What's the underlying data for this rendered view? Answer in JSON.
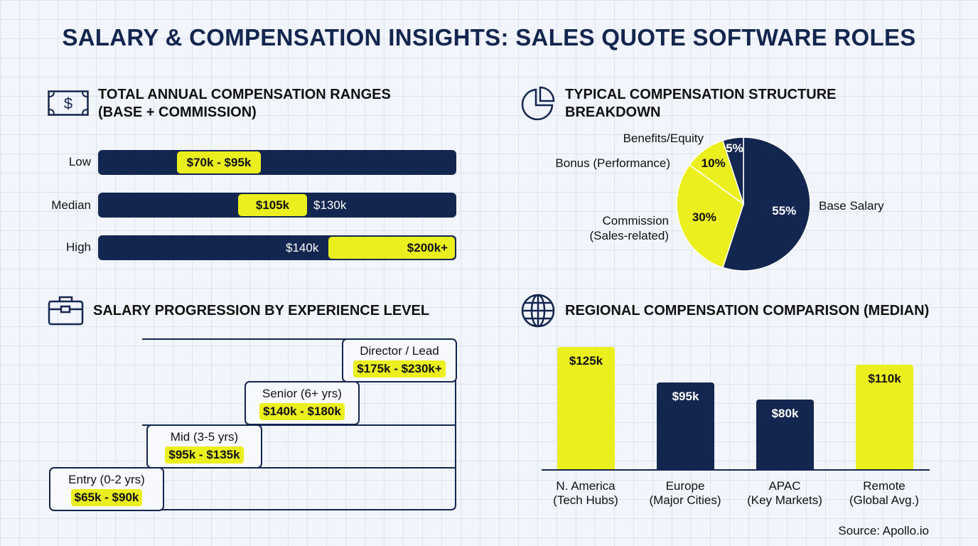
{
  "title": "SALARY & COMPENSATION INSIGHTS: SALES QUOTE SOFTWARE ROLES",
  "colors": {
    "navy": "#13264f",
    "yellow": "#ecef1e"
  },
  "sections": {
    "ranges": {
      "title_line1": "TOTAL ANNUAL COMPENSATION RANGES",
      "title_line2": "(BASE + COMMISSION)",
      "icon": "dollar-bill-icon",
      "rows": [
        {
          "label": "Low",
          "highlight": "$70k - $95k"
        },
        {
          "label": "Median",
          "highlight": "$105k",
          "extra": "$130k"
        },
        {
          "label": "High",
          "extra": "$140k",
          "highlight": "$200k+"
        }
      ]
    },
    "structure": {
      "title_line1": "TYPICAL COMPENSATION STRUCTURE",
      "title_line2": "BREAKDOWN",
      "icon": "pie-chart-icon"
    },
    "progression": {
      "title": "SALARY PROGRESSION BY EXPERIENCE LEVEL",
      "icon": "briefcase-icon",
      "levels": [
        {
          "label": "Entry (0-2 yrs)",
          "range": "$65k - $90k"
        },
        {
          "label": "Mid (3-5 yrs)",
          "range": "$95k - $135k"
        },
        {
          "label": "Senior (6+ yrs)",
          "range": "$140k - $180k"
        },
        {
          "label": "Director / Lead",
          "range": "$175k - $230k+"
        }
      ]
    },
    "regional": {
      "title": "REGIONAL COMPENSATION COMPARISON (MEDIAN)",
      "icon": "globe-icon"
    }
  },
  "chart_data": [
    {
      "type": "pie",
      "slices": [
        {
          "name": "Base Salary",
          "value": 55,
          "label": "55%",
          "color": "#13264f"
        },
        {
          "name": "Commission (Sales-related)",
          "name_line1": "Commission",
          "name_line2": "(Sales-related)",
          "value": 30,
          "label": "30%",
          "color": "#ecef1e"
        },
        {
          "name": "Bonus (Performance)",
          "value": 10,
          "label": "10%",
          "color": "#ecef1e"
        },
        {
          "name": "Benefits/Equity",
          "value": 5,
          "label": "5%",
          "color": "#13264f"
        }
      ]
    },
    {
      "type": "bar",
      "categories": [
        "N. America (Tech Hubs)",
        "Europe (Major Cities)",
        "APAC (Key Markets)",
        "Remote (Global Avg.)"
      ],
      "category_lines": [
        [
          "N. America",
          "(Tech Hubs)"
        ],
        [
          "Europe",
          "(Major Cities)"
        ],
        [
          "APAC",
          "(Key Markets)"
        ],
        [
          "Remote",
          "(Global Avg.)"
        ]
      ],
      "values": [
        125,
        95,
        80,
        110
      ],
      "labels": [
        "$125k",
        "$95k",
        "$80k",
        "$110k"
      ],
      "colors": [
        "#ecef1e",
        "#13264f",
        "#13264f",
        "#ecef1e"
      ],
      "unit": "$k"
    }
  ],
  "source": "Source: Apollo.io"
}
